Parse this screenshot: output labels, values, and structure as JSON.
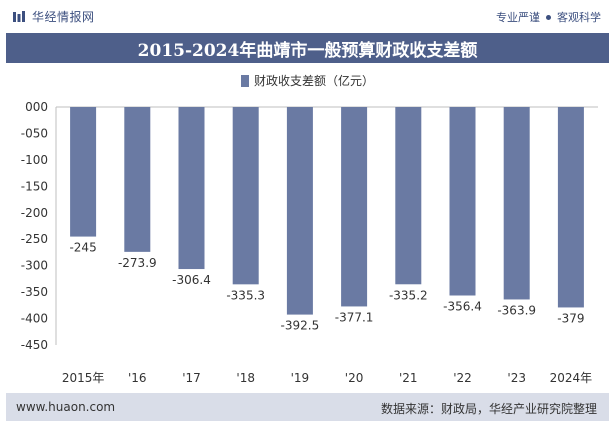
{
  "header": {
    "brand": "华经情报网",
    "tagline_left": "专业严谨",
    "tagline_right": "客观科学"
  },
  "title": "2015-2024年曲靖市一般预算财政收支差额",
  "legend_label": "财政收支差额（亿元）",
  "footer": {
    "website": "www.huaon.com",
    "source": "数据来源：财政局，华经产业研究院整理"
  },
  "colors": {
    "bar": "#6a7aa3",
    "title_bg": "#4e5f8a",
    "footer_bg": "#d9dde8"
  },
  "chart_data": {
    "type": "bar",
    "categories": [
      "2015年",
      "'16",
      "'17",
      "'18",
      "'19",
      "'20",
      "'21",
      "'22",
      "'23",
      "2024年"
    ],
    "series": [
      {
        "name": "财政收支差额（亿元）",
        "values": [
          -245,
          -273.9,
          -306.4,
          -335.3,
          -392.5,
          -377.1,
          -335.2,
          -356.4,
          -363.9,
          -379
        ],
        "labels": [
          "-245",
          "-273.9",
          "-306.4",
          "-335.3",
          "-392.5",
          "-377.1",
          "-335.2",
          "-356.4",
          "-363.9",
          "-379"
        ]
      }
    ],
    "yticks": [
      "000",
      "-050",
      "-100",
      "-150",
      "-200",
      "-250",
      "-300",
      "-350",
      "-400",
      "-450"
    ],
    "ylim": [
      -450,
      0
    ],
    "grid": false,
    "legend_position": "top-center"
  }
}
